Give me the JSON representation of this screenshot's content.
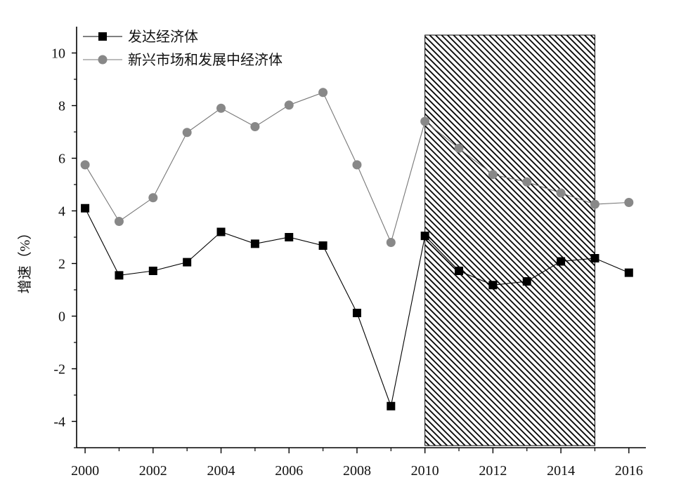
{
  "chart_data": {
    "type": "line",
    "ylabel": "增速（%）",
    "xlabel": "",
    "title": "",
    "xlim": [
      1999.75,
      2016.5
    ],
    "ylim": [
      -5,
      11
    ],
    "x_ticks": [
      2000,
      2002,
      2004,
      2006,
      2008,
      2010,
      2012,
      2014,
      2016
    ],
    "y_ticks": [
      -4,
      -2,
      0,
      2,
      4,
      6,
      8,
      10
    ],
    "x_tick_labels": [
      "2000",
      "2002",
      "2004",
      "2006",
      "2008",
      "2010",
      "2012",
      "2014",
      "2016"
    ],
    "y_tick_labels": [
      "-4",
      "-2",
      "0",
      "2",
      "4",
      "6",
      "8",
      "10"
    ],
    "x": [
      2000,
      2001,
      2002,
      2003,
      2004,
      2005,
      2006,
      2007,
      2008,
      2009,
      2010,
      2011,
      2012,
      2013,
      2014,
      2015,
      2016
    ],
    "series": [
      {
        "name": "发达经济体",
        "marker": "square",
        "color": "#000000",
        "values": [
          4.1,
          1.55,
          1.72,
          2.05,
          3.2,
          2.75,
          3.0,
          2.68,
          0.12,
          -3.42,
          3.05,
          1.72,
          1.18,
          1.32,
          2.08,
          2.2,
          1.65
        ]
      },
      {
        "name": "新兴市场和发展中经济体",
        "marker": "circle",
        "color": "#888888",
        "values": [
          5.75,
          3.6,
          4.5,
          6.98,
          7.9,
          7.2,
          8.02,
          8.5,
          5.75,
          2.8,
          7.4,
          6.38,
          5.38,
          5.1,
          4.68,
          4.25,
          4.32
        ]
      }
    ],
    "shaded_region": {
      "x_start": 2010,
      "x_end": 2015,
      "pattern": "diagonal-hatch"
    },
    "legend": {
      "position": "top-left"
    },
    "grid": false
  }
}
